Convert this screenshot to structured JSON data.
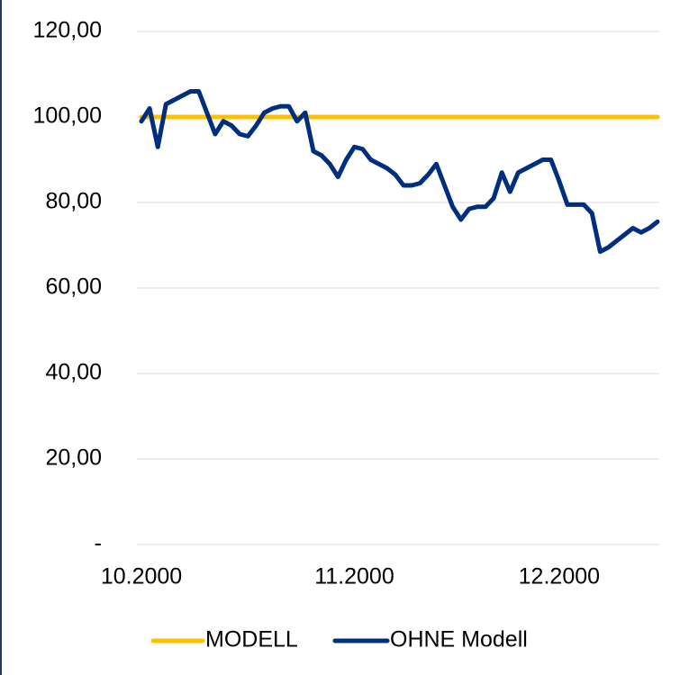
{
  "chart_data": {
    "type": "line",
    "categories": [
      "10.2000",
      null,
      null,
      null,
      null,
      null,
      null,
      null,
      null,
      null,
      null,
      null,
      null,
      null,
      null,
      null,
      null,
      null,
      null,
      null,
      null,
      null,
      null,
      null,
      null,
      null,
      "11.2000",
      null,
      null,
      null,
      null,
      null,
      null,
      null,
      null,
      null,
      null,
      null,
      null,
      null,
      null,
      null,
      null,
      null,
      null,
      null,
      null,
      null,
      null,
      null,
      null,
      "12.2000",
      null,
      null,
      null,
      null,
      null,
      null,
      null,
      null,
      null,
      null,
      null,
      null
    ],
    "series": [
      {
        "name": "MODELL",
        "color": "#ffc000",
        "values": [
          100,
          100,
          100,
          100,
          100,
          100,
          100,
          100,
          100,
          100,
          100,
          100,
          100,
          100,
          100,
          100,
          100,
          100,
          100,
          100,
          100,
          100,
          100,
          100,
          100,
          100,
          100,
          100,
          100,
          100,
          100,
          100,
          100,
          100,
          100,
          100,
          100,
          100,
          100,
          100,
          100,
          100,
          100,
          100,
          100,
          100,
          100,
          100,
          100,
          100,
          100,
          100,
          100,
          100,
          100,
          100,
          100,
          100,
          100,
          100,
          100,
          100,
          100,
          100
        ]
      },
      {
        "name": "OHNE Modell",
        "color": "#002f7f",
        "values": [
          99,
          102,
          93,
          103,
          104,
          105,
          106,
          106,
          101,
          96,
          99,
          98,
          96,
          95.5,
          98,
          101,
          102,
          102.5,
          102.5,
          99,
          101,
          92,
          91,
          89,
          86,
          90,
          93,
          92.5,
          90,
          89,
          88,
          86.5,
          84,
          84,
          84.5,
          86.5,
          89,
          84,
          79,
          76,
          78.5,
          79,
          79,
          81,
          87,
          82.5,
          87,
          88,
          89,
          90,
          90,
          85,
          79.5,
          79.5,
          79.5,
          77.5,
          68.5,
          69.5,
          71,
          72.5,
          74,
          73,
          74,
          75.5
        ]
      }
    ],
    "ylim": [
      0,
      120
    ],
    "yticks": [
      {
        "value": 0,
        "label": "-"
      },
      {
        "value": 20,
        "label": "20,00"
      },
      {
        "value": 40,
        "label": "40,00"
      },
      {
        "value": 60,
        "label": "60,00"
      },
      {
        "value": 80,
        "label": "80,00"
      },
      {
        "value": 100,
        "label": "100,00"
      },
      {
        "value": 120,
        "label": "120,00"
      }
    ],
    "grid": true,
    "legend": "bottom"
  }
}
